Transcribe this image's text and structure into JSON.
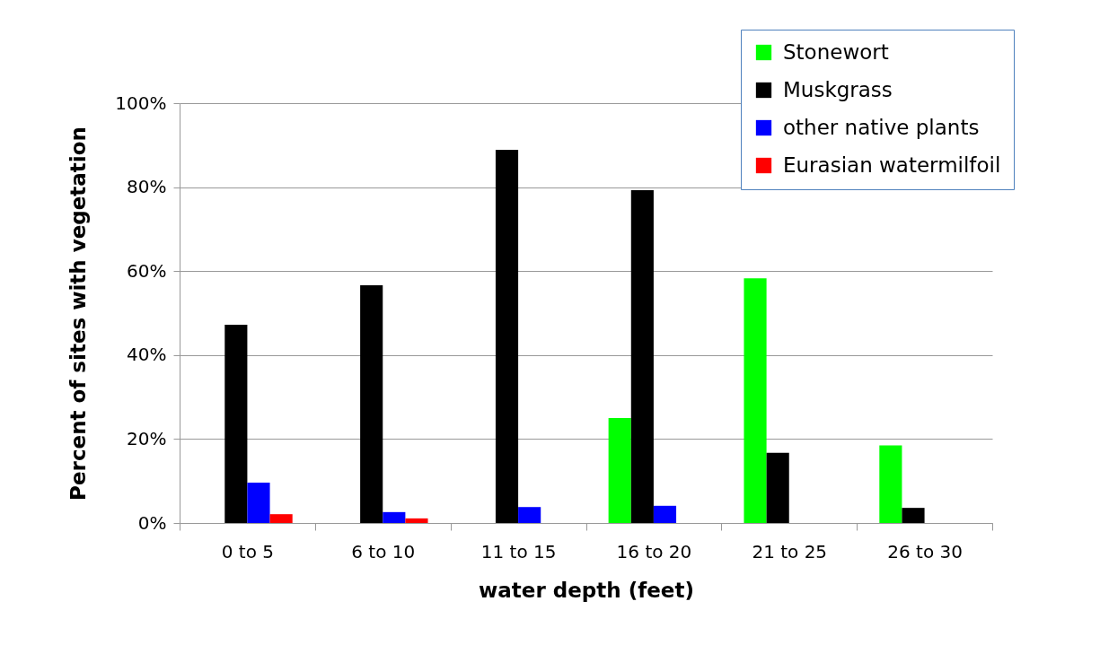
{
  "chart_data": {
    "type": "bar",
    "xlabel": "water depth (feet)",
    "ylabel": "Percent of sites with vegetation",
    "categories": [
      "0 to 5",
      "6 to 10",
      "11 to 15",
      "16 to 20",
      "21 to 25",
      "26 to 30"
    ],
    "series": [
      {
        "name": "Stonewort",
        "color": "#00ff00",
        "values": [
          null,
          null,
          null,
          25,
          58.3,
          18.5
        ]
      },
      {
        "name": "Muskgrass",
        "color": "#000000",
        "values": [
          47.2,
          56.6,
          88.9,
          79.3,
          16.7,
          3.6
        ]
      },
      {
        "name": "other native plants",
        "color": "#0000ff",
        "values": [
          9.6,
          2.6,
          3.8,
          4.1,
          null,
          null
        ]
      },
      {
        "name": "Eurasian watermilfoil",
        "color": "#ff0000",
        "values": [
          2.1,
          1.1,
          null,
          null,
          null,
          null
        ]
      }
    ],
    "ylim": [
      0,
      100
    ],
    "yticks": [
      {
        "value": 0,
        "label": "0%"
      },
      {
        "value": 20,
        "label": "20%"
      },
      {
        "value": 40,
        "label": "40%"
      },
      {
        "value": 60,
        "label": "60%"
      },
      {
        "value": 80,
        "label": "80%"
      },
      {
        "value": 100,
        "label": "100%"
      }
    ],
    "grid": "y",
    "legend": "top right"
  }
}
